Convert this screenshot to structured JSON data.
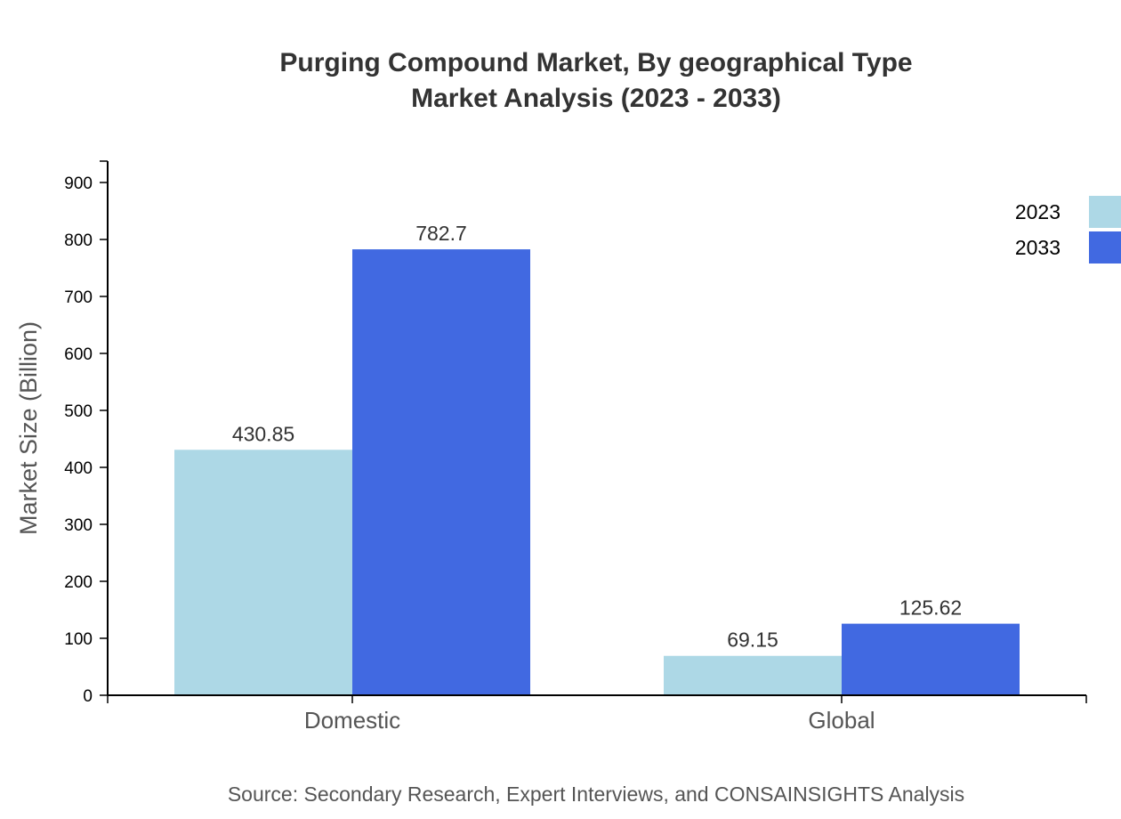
{
  "chart_data": {
    "type": "bar",
    "title": [
      "Purging Compound Market, By geographical Type",
      "Market Analysis (2023 - 2033)"
    ],
    "xlabel": "",
    "ylabel": "Market Size (Billion)",
    "categories": [
      "Domestic",
      "Global"
    ],
    "series": [
      {
        "name": "2023",
        "color": "#add8e6",
        "values": [
          430.85,
          69.15
        ],
        "labels": [
          "430.85",
          "69.15"
        ]
      },
      {
        "name": "2033",
        "color": "#4169e1",
        "values": [
          782.7,
          125.62
        ],
        "labels": [
          "782.7",
          "125.62"
        ]
      }
    ],
    "ylim": [
      0,
      937.5
    ],
    "yticks": [
      0,
      100,
      200,
      300,
      400,
      500,
      600,
      700,
      800,
      900
    ],
    "grid": false,
    "legend": "top-right",
    "source": "Source: Secondary Research, Expert Interviews, and CONSAINSIGHTS Analysis"
  }
}
